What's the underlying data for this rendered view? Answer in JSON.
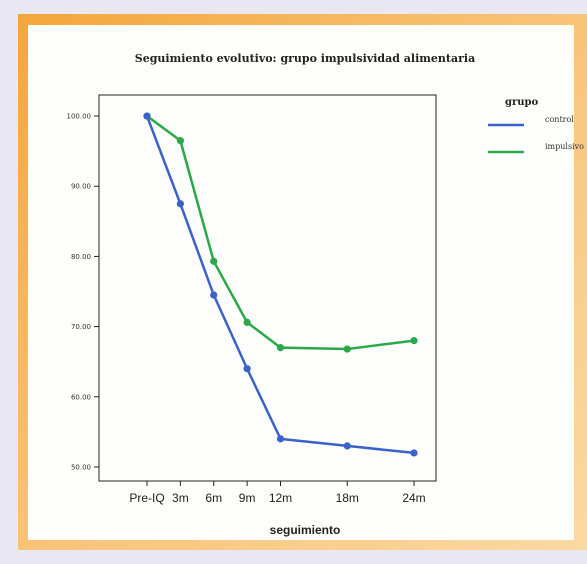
{
  "chart_data": {
    "type": "line",
    "title": "Seguimiento evolutivo: grupo impulsividad alimentaria",
    "xlabel": "seguimiento",
    "ylabel": "",
    "categories": [
      "Pre-IQ",
      "3m",
      "6m",
      "9m",
      "12m",
      "18m",
      "24m"
    ],
    "x_positions": [
      0,
      3,
      6,
      9,
      12,
      18,
      24
    ],
    "ylim": [
      48,
      103
    ],
    "yticks": [
      50,
      60,
      70,
      80,
      90,
      100
    ],
    "ytick_labels": [
      "50.00",
      "60.00",
      "70.00",
      "80.00",
      "90.00",
      "100.00"
    ],
    "grid": false,
    "legend": {
      "title": "grupo",
      "placement": "top-right"
    },
    "series": [
      {
        "name": "control",
        "color": "#3a62c8",
        "values": [
          100,
          87.5,
          74.5,
          64,
          54,
          53,
          52
        ]
      },
      {
        "name": "impulsivo",
        "color": "#2aa84a",
        "values": [
          100,
          96.5,
          79.3,
          70.6,
          67,
          66.8,
          68
        ]
      }
    ]
  }
}
